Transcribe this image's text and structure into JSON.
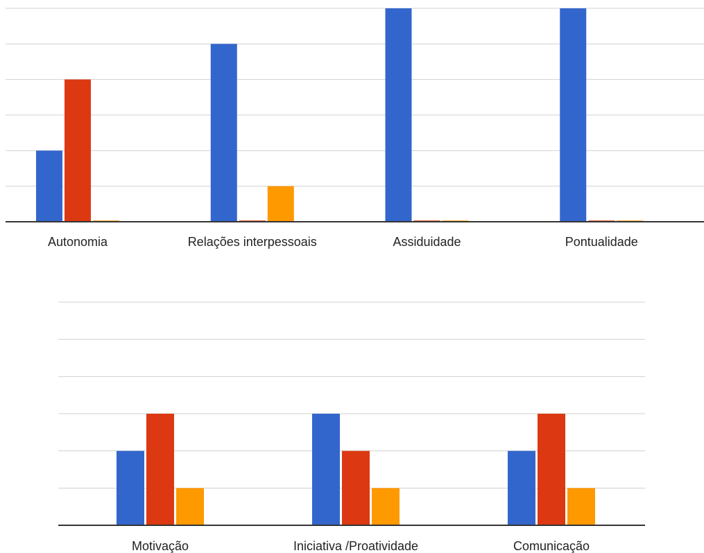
{
  "colors": {
    "series_1": "#3366cc",
    "series_2": "#dc3912",
    "series_3": "#ff9900",
    "gridline": "#d0d0d0",
    "baseline": "#333333"
  },
  "chart_data": [
    {
      "type": "bar",
      "title": "",
      "xlabel": "",
      "ylabel": "",
      "ylim": [
        0,
        6
      ],
      "grid": true,
      "legend": "none",
      "categories": [
        "Autonomia",
        "Relações interpessoais",
        "Assiduidade",
        "Pontualidade"
      ],
      "series": [
        {
          "values": [
            2,
            5,
            6,
            6
          ]
        },
        {
          "values": [
            4,
            0,
            0,
            0
          ]
        },
        {
          "values": [
            0,
            1,
            0,
            0
          ]
        }
      ]
    },
    {
      "type": "bar",
      "title": "",
      "xlabel": "",
      "ylabel": "",
      "ylim": [
        0,
        6
      ],
      "grid": true,
      "legend": "none",
      "categories": [
        "Motivação",
        "Iniciativa /Proatividade",
        "Comunicação"
      ],
      "series": [
        {
          "values": [
            2,
            3,
            2
          ]
        },
        {
          "values": [
            3,
            2,
            3
          ]
        },
        {
          "values": [
            1,
            1,
            1
          ]
        }
      ]
    }
  ]
}
